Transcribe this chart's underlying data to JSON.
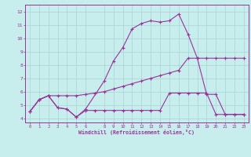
{
  "title": "",
  "xlabel": "Windchill (Refroidissement éolien,°C)",
  "bg_color": "#c8eded",
  "grid_color": "#a8d4d4",
  "line_color": "#993399",
  "xlim": [
    -0.5,
    23.5
  ],
  "ylim": [
    3.7,
    12.5
  ],
  "xticks": [
    0,
    1,
    2,
    3,
    4,
    5,
    6,
    8,
    9,
    10,
    11,
    12,
    13,
    14,
    15,
    16,
    17,
    18,
    19,
    20,
    21,
    22,
    23
  ],
  "yticks": [
    4,
    5,
    6,
    7,
    8,
    9,
    10,
    11,
    12
  ],
  "line1_x": [
    0,
    1,
    2,
    3,
    4,
    5,
    6,
    8,
    9,
    10,
    11,
    12,
    13,
    14,
    15,
    16,
    17,
    18,
    19,
    20,
    21,
    22,
    23
  ],
  "line1_y": [
    4.5,
    5.4,
    5.7,
    4.8,
    4.7,
    4.1,
    4.7,
    6.8,
    8.3,
    9.3,
    10.7,
    11.1,
    11.3,
    11.2,
    11.3,
    11.8,
    10.3,
    8.5,
    5.8,
    5.8,
    4.3,
    4.3,
    4.3
  ],
  "line2_x": [
    0,
    1,
    2,
    3,
    4,
    5,
    6,
    7,
    8,
    9,
    10,
    11,
    12,
    13,
    14,
    15,
    16,
    17,
    18,
    19,
    20,
    21,
    22,
    23
  ],
  "line2_y": [
    4.5,
    5.4,
    5.7,
    5.7,
    5.7,
    5.7,
    5.8,
    5.9,
    6.0,
    6.2,
    6.4,
    6.6,
    6.8,
    7.0,
    7.2,
    7.4,
    7.6,
    8.5,
    8.5,
    8.5,
    8.5,
    8.5,
    8.5,
    8.5
  ],
  "line3_x": [
    0,
    1,
    2,
    3,
    4,
    5,
    6,
    7,
    8,
    9,
    10,
    11,
    12,
    13,
    14,
    15,
    16,
    17,
    18,
    19,
    20,
    21,
    22,
    23
  ],
  "line3_y": [
    4.5,
    5.4,
    5.7,
    4.8,
    4.7,
    4.1,
    4.6,
    4.6,
    4.6,
    4.6,
    4.6,
    4.6,
    4.6,
    4.6,
    4.6,
    5.9,
    5.9,
    5.9,
    5.9,
    5.9,
    4.3,
    4.3,
    4.3,
    4.3
  ]
}
